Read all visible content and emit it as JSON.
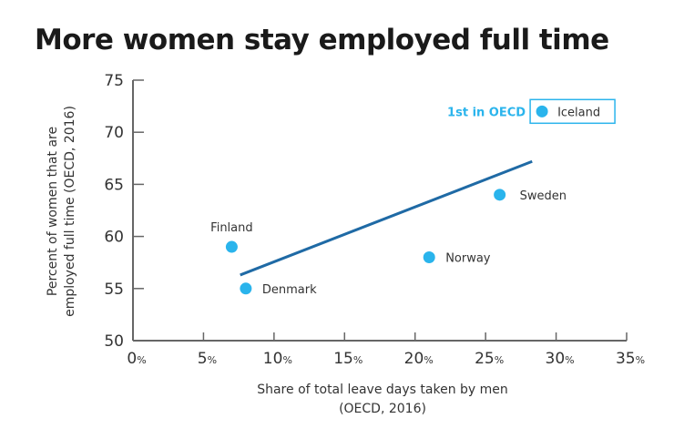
{
  "chart_data": {
    "type": "scatter",
    "title": "More women stay employed full time",
    "xlabel_lines": [
      "Share of total leave days taken by men",
      "(OECD, 2016)"
    ],
    "ylabel_lines": [
      "Percent of women that are",
      "employed full time (OECD, 2016)"
    ],
    "xlim": [
      0,
      35
    ],
    "ylim": [
      50,
      75
    ],
    "xticks": [
      0,
      5,
      10,
      15,
      20,
      25,
      30,
      35
    ],
    "yticks": [
      50,
      55,
      60,
      65,
      70,
      75
    ],
    "x_tick_suffix": "%",
    "grid": false,
    "points": [
      {
        "label": "Finland",
        "x": 7,
        "y": 59
      },
      {
        "label": "Denmark",
        "x": 8,
        "y": 55
      },
      {
        "label": "Norway",
        "x": 21,
        "y": 58
      },
      {
        "label": "Sweden",
        "x": 26,
        "y": 64
      },
      {
        "label": "Iceland",
        "x": 29,
        "y": 72
      }
    ],
    "trendline": {
      "x": [
        7.6,
        28.3
      ],
      "y": [
        56.3,
        67.2
      ]
    },
    "annotation": {
      "text": "1st in OECD",
      "target": "Iceland"
    },
    "colors": {
      "point": "#2ab4ec",
      "trendline": "#1f6aa5",
      "annotation": "#2ab4ec",
      "axis": "#666666"
    }
  }
}
